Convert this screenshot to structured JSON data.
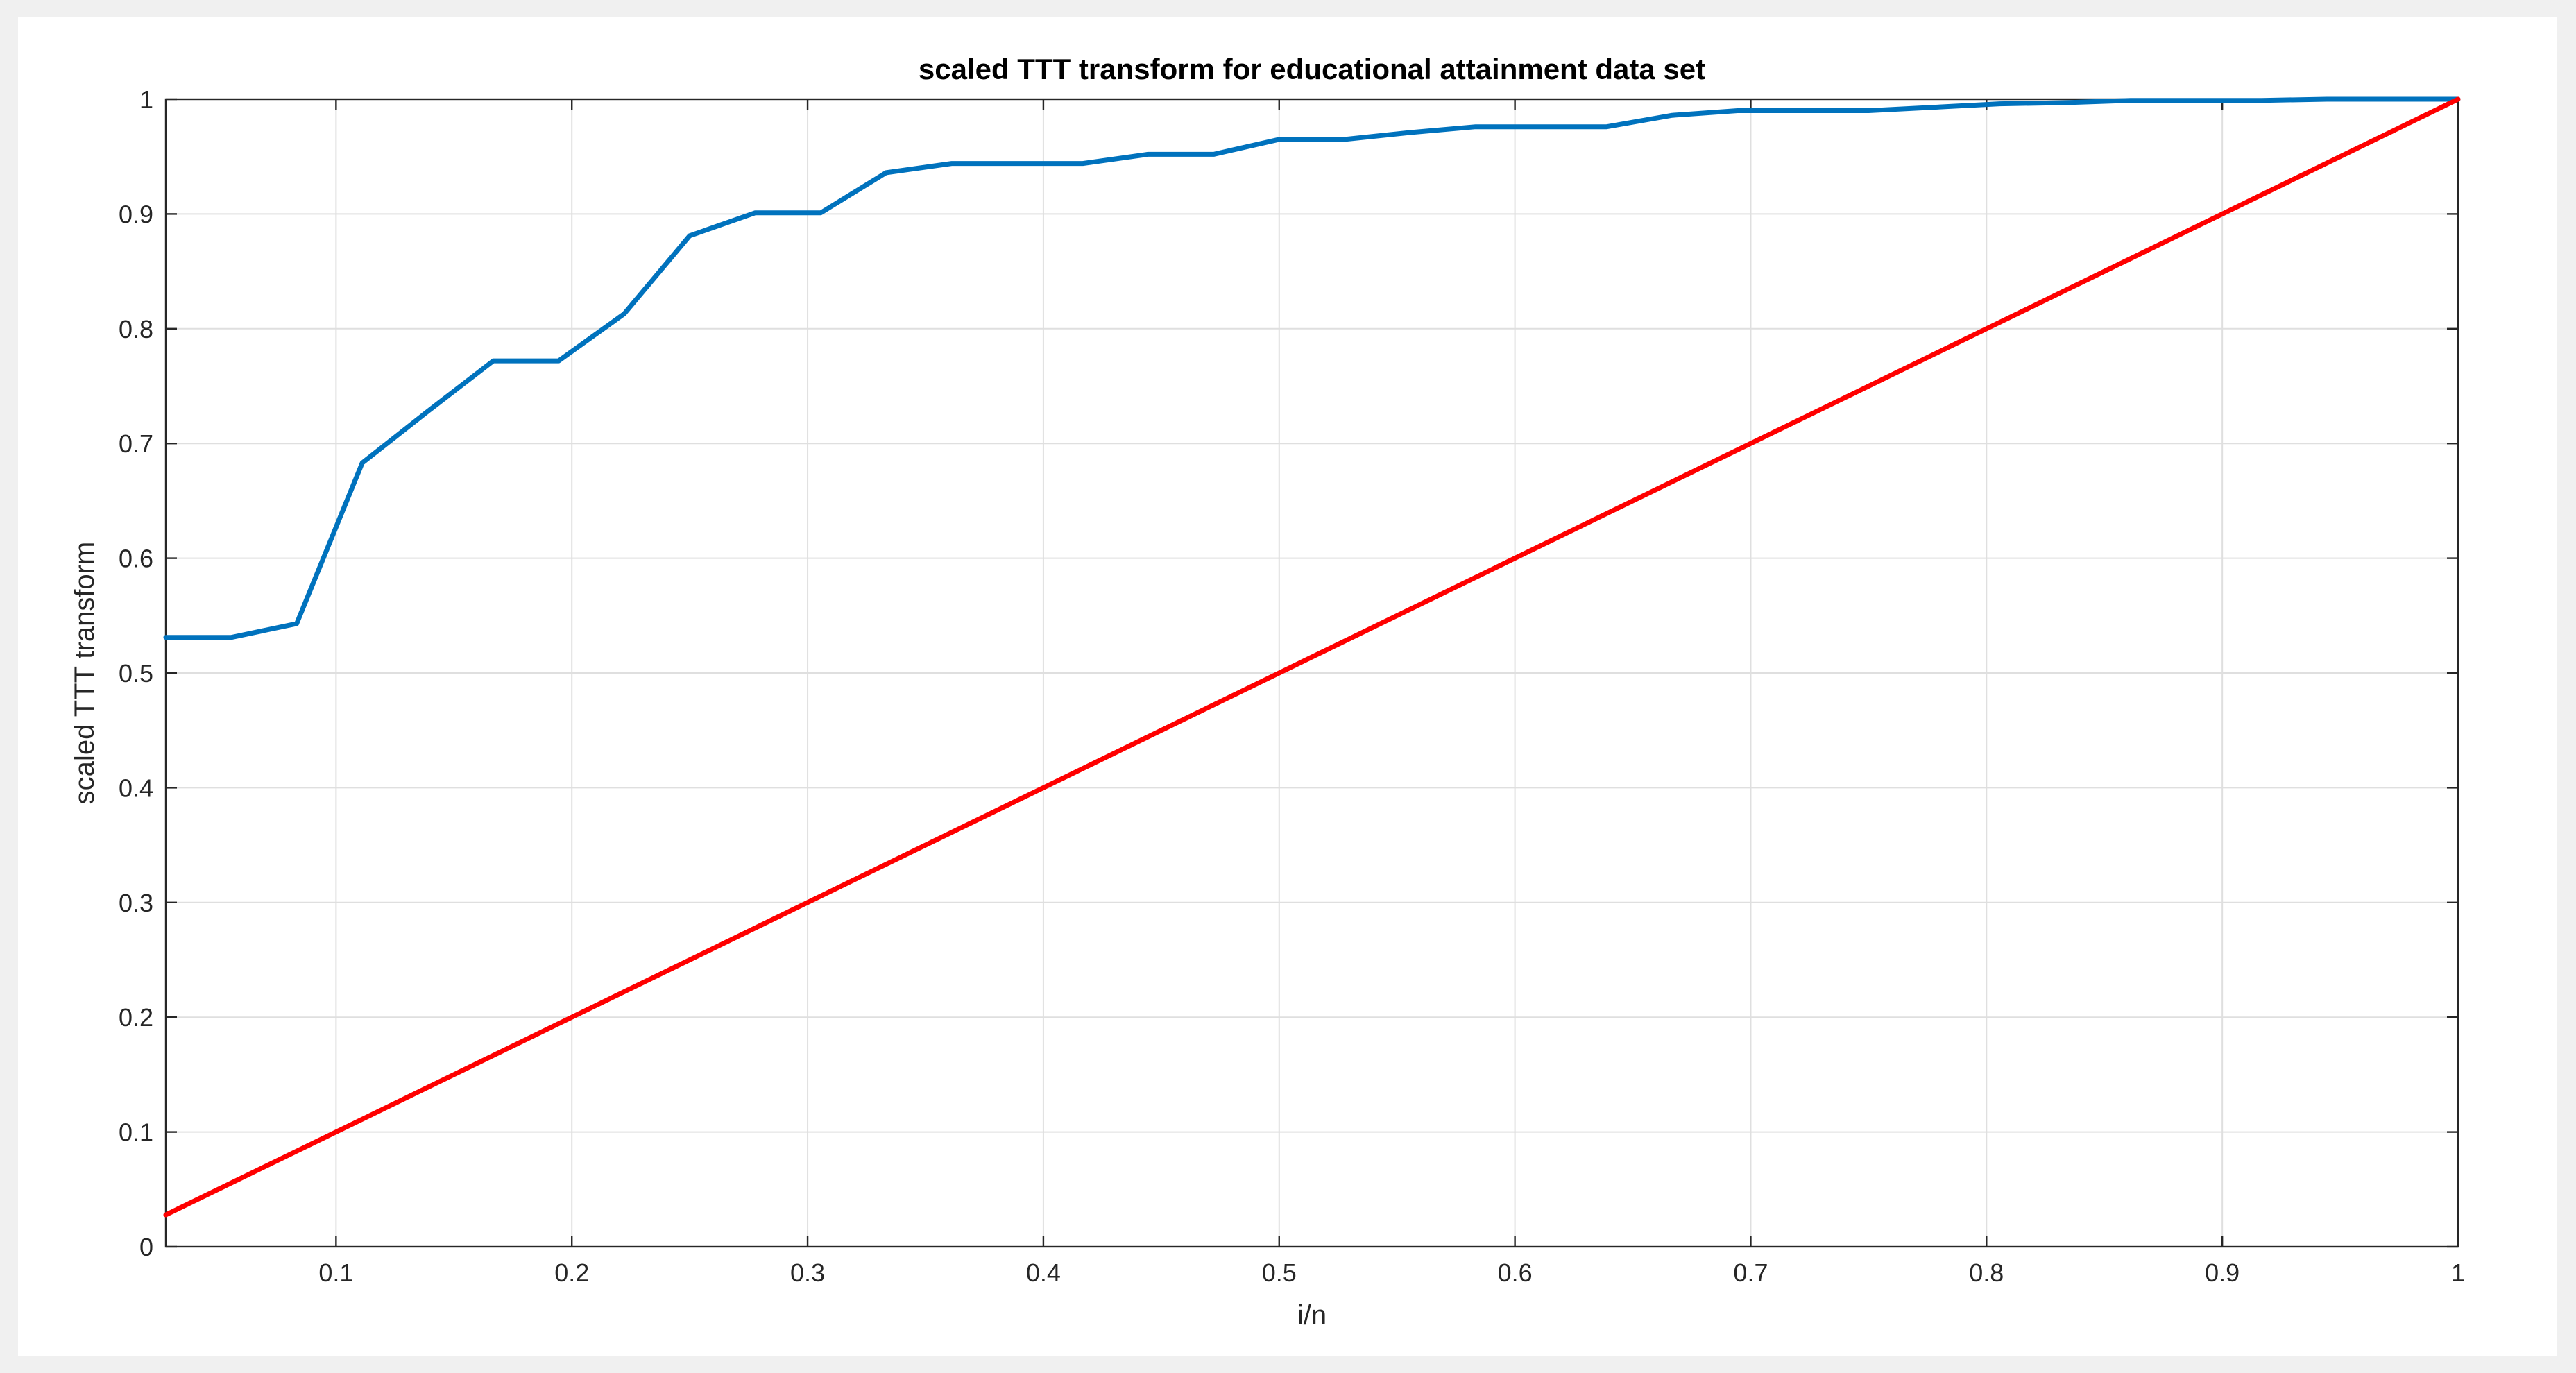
{
  "chart_data": {
    "type": "line",
    "title": "scaled TTT transform for educational attainment data  set",
    "xlabel": "i/n",
    "ylabel": "scaled TTT transform",
    "xlim": [
      0.0278,
      1
    ],
    "ylim": [
      0,
      1
    ],
    "grid": true,
    "legend": "none",
    "xticks": [
      "0.1",
      "0.2",
      "0.3",
      "0.4",
      "0.5",
      "0.6",
      "0.7",
      "0.8",
      "0.9",
      "1"
    ],
    "xtick_values": [
      0.1,
      0.2,
      0.3,
      0.4,
      0.5,
      0.6,
      0.7,
      0.8,
      0.9,
      1
    ],
    "yticks": [
      "0",
      "0.1",
      "0.2",
      "0.3",
      "0.4",
      "0.5",
      "0.6",
      "0.7",
      "0.8",
      "0.9",
      "1"
    ],
    "ytick_values": [
      0,
      0.1,
      0.2,
      0.3,
      0.4,
      0.5,
      0.6,
      0.7,
      0.8,
      0.9,
      1
    ],
    "series": [
      {
        "color": "#0072bd",
        "x": [
          0.0278,
          0.0556,
          0.0833,
          0.1111,
          0.1389,
          0.1667,
          0.1944,
          0.2222,
          0.25,
          0.2778,
          0.3056,
          0.3333,
          0.3611,
          0.3889,
          0.4167,
          0.4444,
          0.4722,
          0.5,
          0.5278,
          0.5556,
          0.5833,
          0.6111,
          0.6389,
          0.6667,
          0.6944,
          0.7222,
          0.75,
          0.7778,
          0.8056,
          0.8333,
          0.8611,
          0.8889,
          0.9167,
          0.9444,
          0.9722,
          1.0
        ],
        "y": [
          0.531,
          0.531,
          0.543,
          0.683,
          0.728,
          0.772,
          0.772,
          0.813,
          0.881,
          0.901,
          0.901,
          0.936,
          0.944,
          0.944,
          0.944,
          0.952,
          0.952,
          0.965,
          0.965,
          0.971,
          0.976,
          0.976,
          0.976,
          0.986,
          0.99,
          0.99,
          0.99,
          0.993,
          0.996,
          0.997,
          0.999,
          0.999,
          0.999,
          1.0,
          1.0,
          1.0
        ]
      },
      {
        "color": "#ff0000",
        "x": [
          0.0278,
          1.0
        ],
        "y": [
          0.0278,
          1.0
        ]
      }
    ]
  }
}
